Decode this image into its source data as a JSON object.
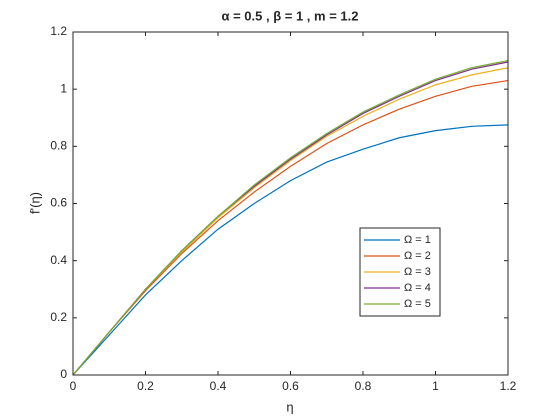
{
  "chart_data": {
    "type": "line",
    "title": "α = 0.5 , β = 1 , m = 1.2",
    "xlabel": "η",
    "ylabel": "f'(η)",
    "x": [
      0,
      0.1,
      0.2,
      0.3,
      0.4,
      0.5,
      0.6,
      0.7,
      0.8,
      0.9,
      1,
      1.1,
      1.2
    ],
    "series": [
      {
        "name": "Ω = 1",
        "color": "#0072bd",
        "values": [
          0,
          0.14,
          0.28,
          0.4,
          0.51,
          0.6,
          0.68,
          0.745,
          0.79,
          0.83,
          0.855,
          0.87,
          0.875
        ]
      },
      {
        "name": "Ω = 2",
        "color": "#d95319",
        "values": [
          0,
          0.15,
          0.295,
          0.425,
          0.54,
          0.64,
          0.73,
          0.81,
          0.875,
          0.93,
          0.975,
          1.01,
          1.03
        ]
      },
      {
        "name": "Ω = 3",
        "color": "#edb120",
        "values": [
          0,
          0.15,
          0.3,
          0.43,
          0.55,
          0.655,
          0.75,
          0.835,
          0.905,
          0.965,
          1.015,
          1.05,
          1.075
        ]
      },
      {
        "name": "Ω = 4",
        "color": "#7e2f8e",
        "values": [
          0,
          0.15,
          0.3,
          0.435,
          0.555,
          0.66,
          0.755,
          0.84,
          0.915,
          0.975,
          1.03,
          1.07,
          1.095
        ]
      },
      {
        "name": "Ω = 5",
        "color": "#77ac30",
        "values": [
          0,
          0.15,
          0.3,
          0.435,
          0.555,
          0.665,
          0.76,
          0.845,
          0.92,
          0.98,
          1.035,
          1.075,
          1.1
        ]
      }
    ],
    "xlim": [
      0,
      1.2
    ],
    "xticks": [
      0,
      0.2,
      0.4,
      0.6,
      0.8,
      1,
      1.2
    ],
    "ylim": [
      0,
      1.2
    ],
    "yticks": [
      0,
      0.2,
      0.4,
      0.6,
      0.8,
      1,
      1.2
    ],
    "grid": false,
    "legend": "southeast"
  }
}
